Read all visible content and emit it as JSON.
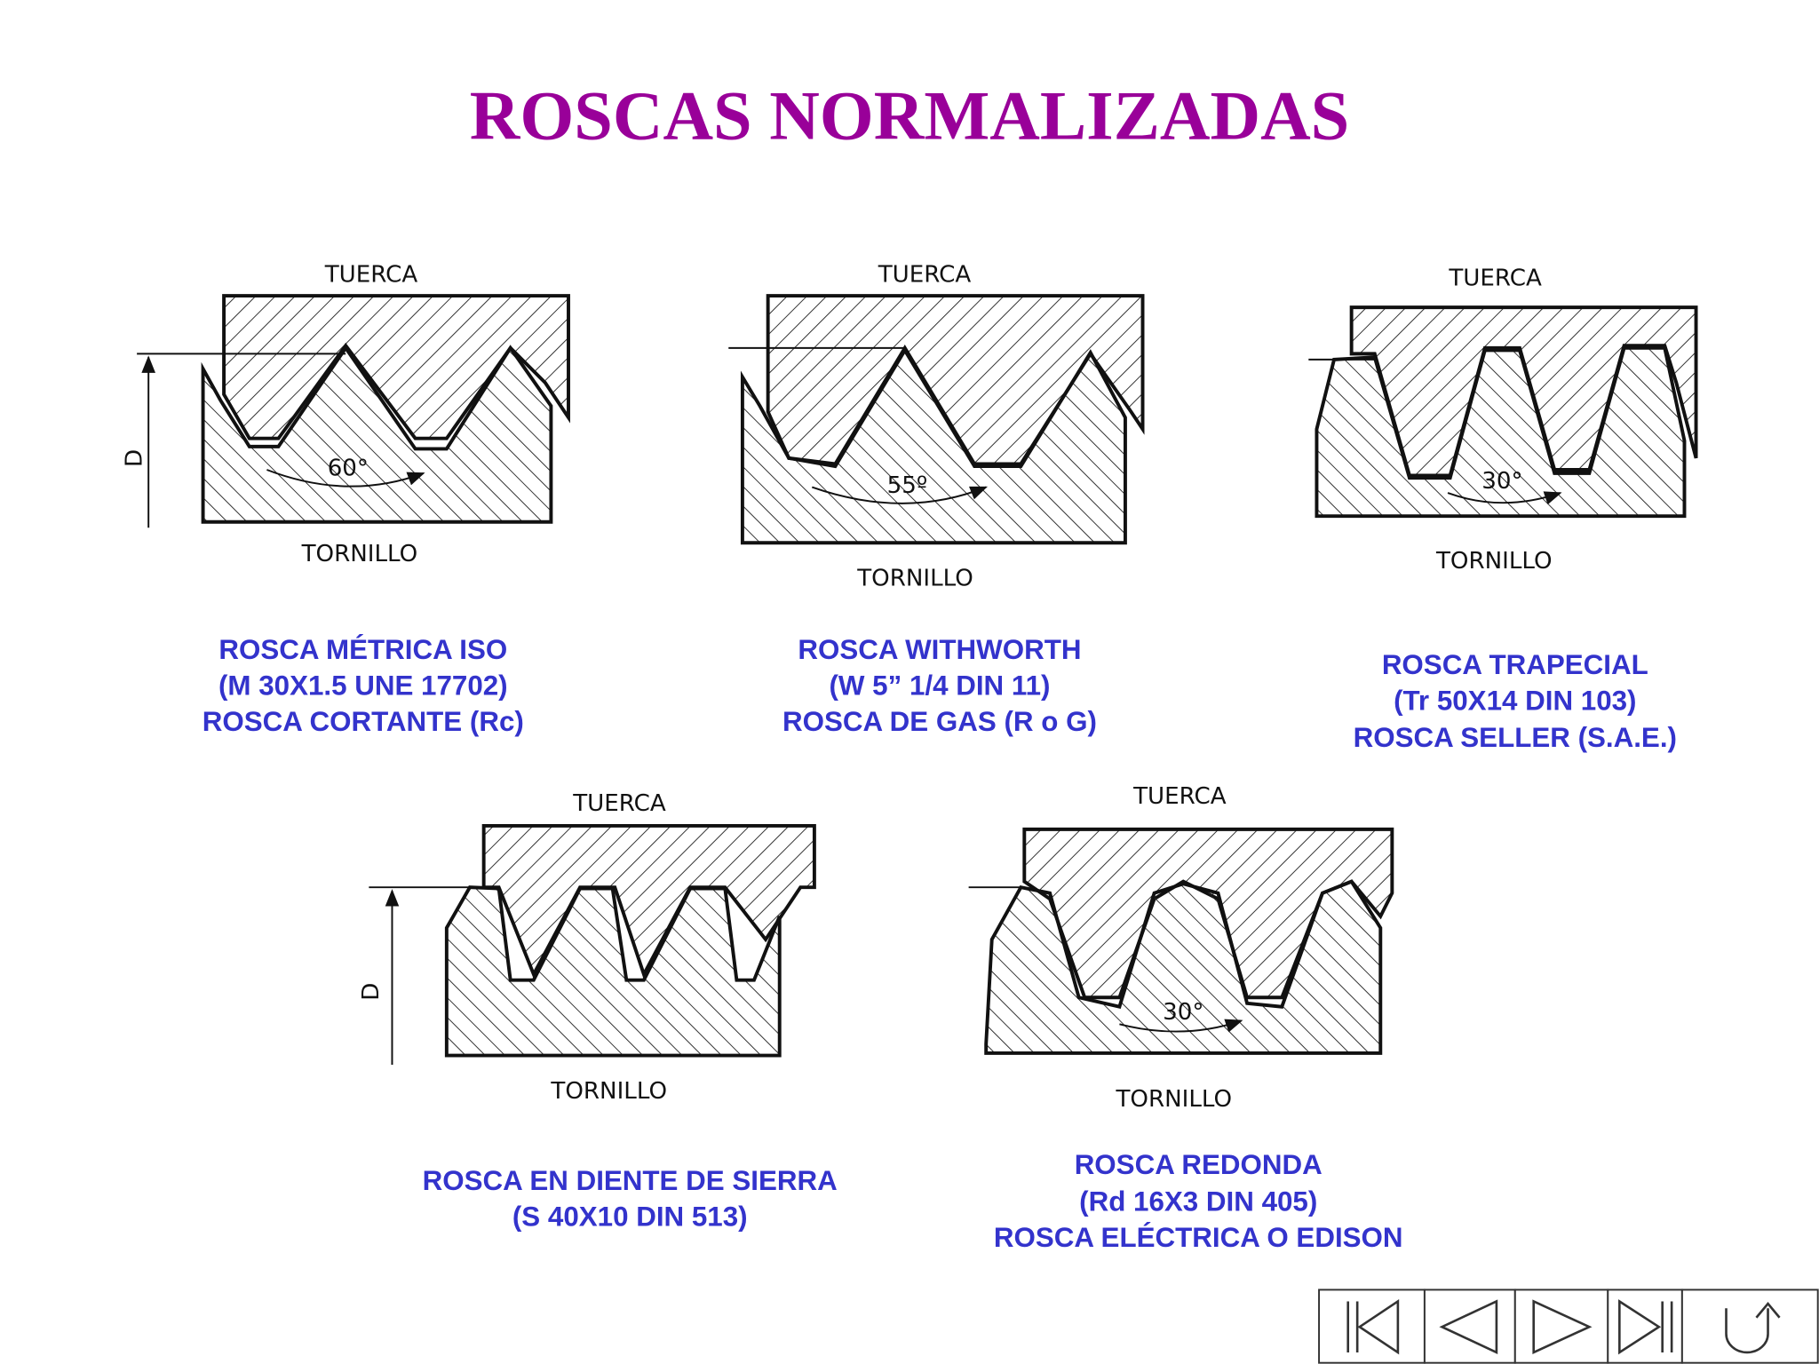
{
  "title": "ROSCAS NORMALIZADAS",
  "threads": [
    {
      "nut_label": "TUERCA",
      "screw_label": "TORNILLO",
      "angle_label": "60°",
      "dimension_label": "D",
      "caption": [
        "ROSCA MÉTRICA ISO",
        "(M 30X1.5 UNE 17702)",
        "ROSCA CORTANTE (Rc)"
      ]
    },
    {
      "nut_label": "TUERCA",
      "screw_label": "TORNILLO",
      "angle_label": "55º",
      "caption": [
        "ROSCA WITHWORTH",
        "(W 5” 1/4 DIN 11)",
        "ROSCA DE GAS (R o G)"
      ]
    },
    {
      "nut_label": "TUERCA",
      "screw_label": "TORNILLO",
      "angle_label": "30°",
      "caption": [
        "ROSCA TRAPECIAL",
        "(Tr 50X14 DIN 103)",
        "ROSCA SELLER (S.A.E.)"
      ]
    },
    {
      "nut_label": "TUERCA",
      "screw_label": "TORNILLO",
      "dimension_label": "D",
      "caption": [
        "ROSCA EN DIENTE DE SIERRA",
        "(S 40X10 DIN 513)"
      ]
    },
    {
      "nut_label": "TUERCA",
      "screw_label": "TORNILLO",
      "angle_label": "30°",
      "caption": [
        "ROSCA REDONDA",
        "(Rd 16X3 DIN 405)",
        "ROSCA ELÉCTRICA O EDISON"
      ]
    }
  ]
}
